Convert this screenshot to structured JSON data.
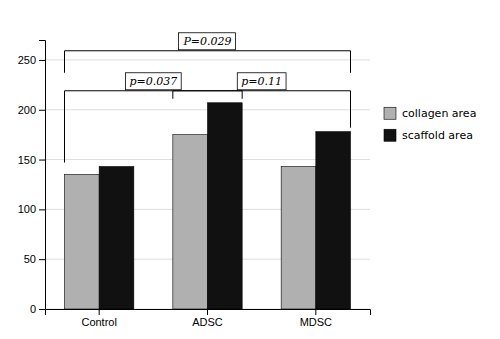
{
  "chart_data": {
    "type": "bar",
    "categories": [
      "Control",
      "ADSC",
      "MDSC"
    ],
    "series": [
      {
        "name": "collagen area",
        "color": "#b0b0b0",
        "values": [
          135,
          175,
          143
        ]
      },
      {
        "name": "scaffold area",
        "color": "#111111",
        "values": [
          143,
          207,
          178
        ]
      }
    ],
    "ylim": [
      0,
      270
    ],
    "yticks": [
      0,
      50,
      100,
      150,
      200,
      250
    ],
    "grid": true,
    "legend": "right",
    "annotations": [
      "P=0.029",
      "p=0.037",
      "p=0.11"
    ]
  }
}
